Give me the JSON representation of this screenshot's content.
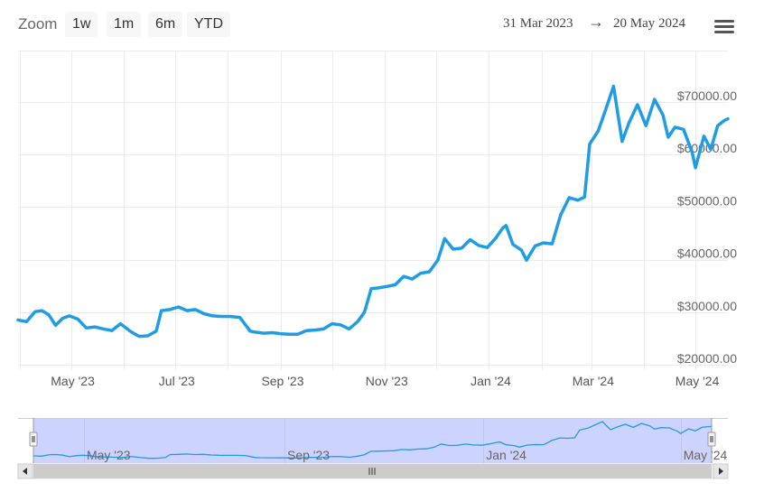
{
  "toolbar": {
    "zoom_label": "Zoom",
    "buttons": [
      "1w",
      "1m",
      "6m",
      "YTD"
    ],
    "range_from": "31 Mar 2023",
    "range_arrow": "→",
    "range_to": "20 May 2024",
    "menu_icon": "hamburger-menu-icon"
  },
  "colors": {
    "series": "#1f9ce6",
    "navigator_mask": "#cdd3ff",
    "grid": "#ececec"
  },
  "chart_data": {
    "type": "line",
    "title": "",
    "xlabel": "",
    "ylabel": "",
    "x_tick_labels": [
      "May '23",
      "Jul '23",
      "Sep '23",
      "Nov '23",
      "Jan '24",
      "Mar '24",
      "May '24"
    ],
    "y_tick_labels": [
      "$20000.00",
      "$30000.00",
      "$40000.00",
      "$50000.00",
      "$60000.00",
      "$70000.00"
    ],
    "ylim": [
      20000,
      75000
    ],
    "xlim": [
      "2023-03-31",
      "2024-05-20"
    ],
    "y_axis_position": "right",
    "grid": true,
    "navigator_tick_labels": [
      "May '23",
      "Sep '23",
      "Jan '24",
      "May '24"
    ],
    "series": [
      {
        "x": [
          "2023-03-31",
          "2023-04-05",
          "2023-04-10",
          "2023-04-14",
          "2023-04-18",
          "2023-04-22",
          "2023-04-26",
          "2023-04-30",
          "2023-05-05",
          "2023-05-10",
          "2023-05-15",
          "2023-05-20",
          "2023-05-25",
          "2023-05-30",
          "2023-06-05",
          "2023-06-10",
          "2023-06-15",
          "2023-06-20",
          "2023-06-23",
          "2023-06-28",
          "2023-07-03",
          "2023-07-08",
          "2023-07-13",
          "2023-07-18",
          "2023-07-23",
          "2023-07-28",
          "2023-08-02",
          "2023-08-08",
          "2023-08-14",
          "2023-08-17",
          "2023-08-22",
          "2023-08-27",
          "2023-09-01",
          "2023-09-06",
          "2023-09-11",
          "2023-09-16",
          "2023-09-21",
          "2023-09-26",
          "2023-10-01",
          "2023-10-06",
          "2023-10-11",
          "2023-10-16",
          "2023-10-20",
          "2023-10-24",
          "2023-10-28",
          "2023-11-02",
          "2023-11-07",
          "2023-11-12",
          "2023-11-17",
          "2023-11-22",
          "2023-11-27",
          "2023-12-02",
          "2023-12-06",
          "2023-12-11",
          "2023-12-16",
          "2023-12-21",
          "2023-12-26",
          "2023-12-31",
          "2024-01-05",
          "2024-01-09",
          "2024-01-11",
          "2024-01-15",
          "2024-01-20",
          "2024-01-23",
          "2024-01-28",
          "2024-02-02",
          "2024-02-07",
          "2024-02-12",
          "2024-02-17",
          "2024-02-22",
          "2024-02-26",
          "2024-02-29",
          "2024-03-05",
          "2024-03-09",
          "2024-03-14",
          "2024-03-19",
          "2024-03-23",
          "2024-03-28",
          "2024-04-02",
          "2024-04-07",
          "2024-04-12",
          "2024-04-15",
          "2024-04-19",
          "2024-04-24",
          "2024-04-29",
          "2024-05-01",
          "2024-05-06",
          "2024-05-10",
          "2024-05-14",
          "2024-05-18",
          "2024-05-20"
        ],
        "values": [
          28500,
          28200,
          30100,
          30300,
          29500,
          27500,
          28800,
          29300,
          28700,
          27000,
          27200,
          26800,
          26500,
          27800,
          26300,
          25400,
          25500,
          26400,
          30300,
          30500,
          31000,
          30300,
          30500,
          29700,
          29300,
          29200,
          29200,
          29000,
          26400,
          26200,
          26000,
          26100,
          25900,
          25800,
          25800,
          26500,
          26600,
          26800,
          27800,
          27600,
          26800,
          28200,
          30000,
          34500,
          34600,
          34900,
          35200,
          36800,
          36300,
          37400,
          37700,
          39900,
          44000,
          42000,
          42200,
          43800,
          42700,
          42300,
          44100,
          46000,
          46500,
          42900,
          41800,
          39900,
          42600,
          43200,
          43000,
          48500,
          51800,
          51300,
          51900,
          62000,
          64500,
          68200,
          73000,
          62500,
          66000,
          69500,
          65500,
          70500,
          67500,
          63300,
          65200,
          64800,
          60500,
          57500,
          63500,
          61000,
          65500,
          66500,
          66800
        ]
      }
    ]
  }
}
